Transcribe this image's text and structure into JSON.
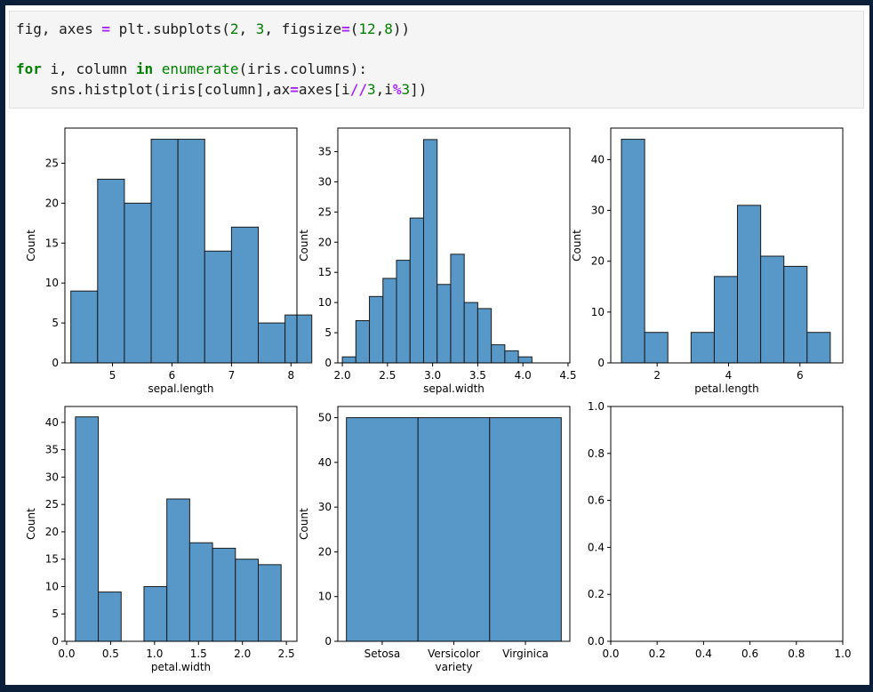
{
  "code": {
    "line1": [
      {
        "t": "fig, axes ",
        "c": ""
      },
      {
        "t": "=",
        "c": "op"
      },
      {
        "t": " plt.subplots(",
        "c": ""
      },
      {
        "t": "2",
        "c": "num"
      },
      {
        "t": ", ",
        "c": ""
      },
      {
        "t": "3",
        "c": "num"
      },
      {
        "t": ", figsize",
        "c": ""
      },
      {
        "t": "=",
        "c": "op"
      },
      {
        "t": "(",
        "c": ""
      },
      {
        "t": "12",
        "c": "num"
      },
      {
        "t": ",",
        "c": ""
      },
      {
        "t": "8",
        "c": "num"
      },
      {
        "t": "))",
        "c": ""
      }
    ],
    "line2": [
      {
        "t": "for",
        "c": "kw"
      },
      {
        "t": " i, column ",
        "c": ""
      },
      {
        "t": "in",
        "c": "kw"
      },
      {
        "t": " ",
        "c": ""
      },
      {
        "t": "enumerate",
        "c": "bi"
      },
      {
        "t": "(iris.columns):",
        "c": ""
      }
    ],
    "line3": [
      {
        "t": "    sns.histplot(iris[column],ax",
        "c": ""
      },
      {
        "t": "=",
        "c": "op"
      },
      {
        "t": "axes[i",
        "c": ""
      },
      {
        "t": "//",
        "c": "op"
      },
      {
        "t": "3",
        "c": "num"
      },
      {
        "t": ",i",
        "c": ""
      },
      {
        "t": "%",
        "c": "op"
      },
      {
        "t": "3",
        "c": "num"
      },
      {
        "t": "])",
        "c": ""
      }
    ]
  },
  "colors": {
    "bar": "#5798c8",
    "edge": "#1a1a1a"
  },
  "chart_data": [
    {
      "type": "bar",
      "xlabel": "sepal.length",
      "ylabel": "Count",
      "xlim": [
        4.2,
        8.1
      ],
      "ylim": [
        0,
        29.4
      ],
      "xticks": [
        5,
        6,
        7,
        8
      ],
      "yticks": [
        0,
        5,
        10,
        15,
        20,
        25
      ],
      "bins": [
        [
          4.3,
          4.75,
          9
        ],
        [
          4.75,
          5.2,
          23
        ],
        [
          5.2,
          5.65,
          20
        ],
        [
          5.65,
          6.1,
          28
        ],
        [
          6.1,
          6.55,
          28
        ],
        [
          6.55,
          7.0,
          14
        ],
        [
          7.0,
          7.45,
          17
        ],
        [
          7.45,
          7.9,
          5
        ],
        [
          7.9,
          8.35,
          6
        ]
      ]
    },
    {
      "type": "bar",
      "xlabel": "sepal.width",
      "ylabel": "Count",
      "xlim": [
        1.95,
        4.52
      ],
      "ylim": [
        0,
        38.9
      ],
      "xticks": [
        2.0,
        2.5,
        3.0,
        3.5,
        4.0,
        4.5
      ],
      "yticks": [
        0,
        5,
        10,
        15,
        20,
        25,
        30,
        35
      ],
      "tick_labels": [
        "2.0",
        "2.5",
        "3.0",
        "3.5",
        "4.0",
        "4.5"
      ],
      "bins": [
        [
          2.0,
          2.15,
          1
        ],
        [
          2.15,
          2.3,
          7
        ],
        [
          2.3,
          2.45,
          11
        ],
        [
          2.45,
          2.6,
          14
        ],
        [
          2.6,
          2.75,
          17
        ],
        [
          2.75,
          2.9,
          24
        ],
        [
          2.9,
          3.05,
          37
        ],
        [
          3.05,
          3.2,
          13
        ],
        [
          3.2,
          3.35,
          18
        ],
        [
          3.35,
          3.5,
          10
        ],
        [
          3.5,
          3.65,
          9
        ],
        [
          3.65,
          3.8,
          3
        ],
        [
          3.8,
          3.95,
          2
        ],
        [
          3.95,
          4.1,
          1
        ]
      ]
    },
    {
      "type": "bar",
      "xlabel": "petal.length",
      "ylabel": "Count",
      "xlim": [
        0.7,
        7.2
      ],
      "ylim": [
        0,
        46.2
      ],
      "xticks": [
        2,
        4,
        6
      ],
      "yticks": [
        0,
        10,
        20,
        30,
        40
      ],
      "bins": [
        [
          1.0,
          1.65,
          44
        ],
        [
          1.65,
          2.3,
          6
        ],
        [
          2.95,
          3.6,
          6
        ],
        [
          3.6,
          4.25,
          17
        ],
        [
          4.25,
          4.9,
          31
        ],
        [
          4.9,
          5.55,
          21
        ],
        [
          5.55,
          6.2,
          19
        ],
        [
          6.2,
          6.85,
          6
        ]
      ]
    },
    {
      "type": "bar",
      "xlabel": "petal.width",
      "ylabel": "Count",
      "xlim": [
        -0.02,
        2.62
      ],
      "ylim": [
        0,
        42.9
      ],
      "xticks": [
        0.0,
        0.5,
        1.0,
        1.5,
        2.0,
        2.5
      ],
      "yticks": [
        0,
        5,
        10,
        15,
        20,
        25,
        30,
        35,
        40
      ],
      "tick_labels": [
        "0.0",
        "0.5",
        "1.0",
        "1.5",
        "2.0",
        "2.5"
      ],
      "bins": [
        [
          0.1,
          0.36,
          41
        ],
        [
          0.36,
          0.62,
          9
        ],
        [
          0.88,
          1.14,
          10
        ],
        [
          1.14,
          1.4,
          26
        ],
        [
          1.4,
          1.66,
          18
        ],
        [
          1.66,
          1.92,
          17
        ],
        [
          1.92,
          2.18,
          15
        ],
        [
          2.18,
          2.44,
          14
        ]
      ]
    },
    {
      "type": "bar",
      "xlabel": "variety",
      "ylabel": "Count",
      "categories": [
        "Setosa",
        "Versicolor",
        "Virginica"
      ],
      "values": [
        50,
        50,
        50
      ],
      "ylim": [
        0,
        52.5
      ],
      "yticks": [
        0,
        10,
        20,
        30,
        40,
        50
      ]
    },
    {
      "type": "empty",
      "xlabel": "",
      "ylabel": "",
      "xlim": [
        0,
        1
      ],
      "ylim": [
        0,
        1
      ],
      "xticks": [
        0.0,
        0.2,
        0.4,
        0.6,
        0.8,
        1.0
      ],
      "yticks": [
        0.0,
        0.2,
        0.4,
        0.6,
        0.8,
        1.0
      ],
      "tick_labels": [
        "0.0",
        "0.2",
        "0.4",
        "0.6",
        "0.8",
        "1.0"
      ]
    }
  ]
}
